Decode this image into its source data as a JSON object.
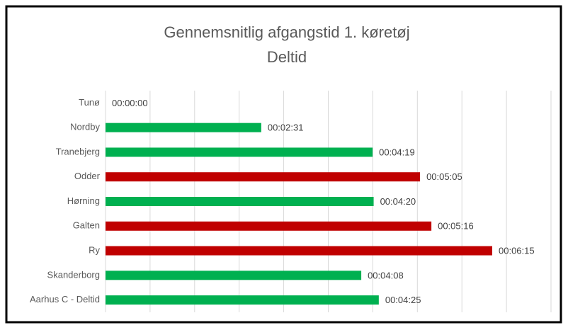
{
  "chart_data": {
    "type": "barh",
    "title": "Gennemsnitlig afgangstid 1. køretøj",
    "subtitle": "Deltid",
    "categories": [
      "Tunø",
      "Nordby",
      "Tranebjerg",
      "Odder",
      "Hørning",
      "Galten",
      "Ry",
      "Skanderborg",
      "Aarhus C - Deltid"
    ],
    "values": [
      0,
      151,
      259,
      305,
      260,
      316,
      375,
      248,
      265
    ],
    "value_labels": [
      "00:00:00",
      "00:02:31",
      "00:04:19",
      "00:05:05",
      "00:04:20",
      "00:05:16",
      "00:06:15",
      "00:04:08",
      "00:04:25"
    ],
    "colors": [
      "#00b050",
      "#00b050",
      "#00b050",
      "#c00000",
      "#00b050",
      "#c00000",
      "#c00000",
      "#00b050",
      "#00b050"
    ],
    "xlim": [
      0,
      432
    ],
    "xticks": [
      0,
      43.2,
      86.4,
      129.6,
      172.8,
      216,
      259.2,
      302.4,
      345.6,
      388.8,
      432
    ],
    "grid": true
  }
}
